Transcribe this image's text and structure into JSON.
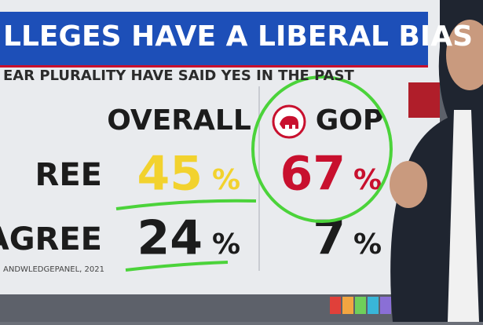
{
  "header": {
    "title": "LLEGES HAVE A LIBERAL BIAS",
    "subtitle": "EAR PLURALITY HAVE SAID YES IN THE PAST"
  },
  "table": {
    "columns": [
      "OVERALL",
      "GOP"
    ],
    "rows": [
      {
        "label": "REE",
        "cells": [
          {
            "value": 45,
            "unit": "%"
          },
          {
            "value": 67,
            "unit": "%"
          }
        ]
      },
      {
        "label": "AGREE",
        "cells": [
          {
            "value": 24,
            "unit": "%"
          },
          {
            "value": 7,
            "unit": "%"
          }
        ]
      }
    ]
  },
  "source": "ANDWLEDGEPANEL, 2021"
}
